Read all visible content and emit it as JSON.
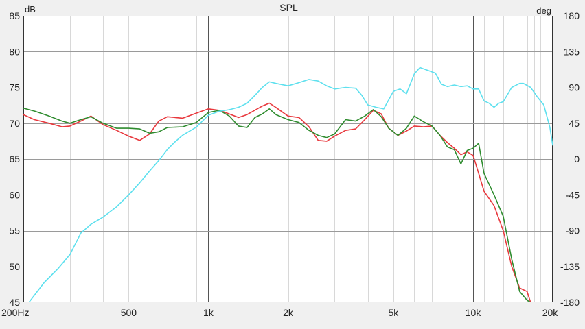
{
  "chart_data": {
    "type": "line",
    "title": "SPL",
    "left_unit": "dB",
    "right_unit": "deg",
    "x_scale": "log",
    "xlim": [
      200,
      20000
    ],
    "ylim_left": [
      45,
      85
    ],
    "ylim_right": [
      -180,
      180
    ],
    "grid": true,
    "x_ticks": [
      {
        "value": 200,
        "label": "200Hz"
      },
      {
        "value": 500,
        "label": "500"
      },
      {
        "value": 1000,
        "label": "1k"
      },
      {
        "value": 2000,
        "label": "2k"
      },
      {
        "value": 5000,
        "label": "5k"
      },
      {
        "value": 10000,
        "label": "10k"
      },
      {
        "value": 20000,
        "label": "20k"
      }
    ],
    "y_left_ticks": [
      45,
      50,
      55,
      60,
      65,
      70,
      75,
      80,
      85
    ],
    "y_right_ticks": [
      {
        "value": -180,
        "label": "-180"
      },
      {
        "value": -135,
        "label": "-135"
      },
      {
        "value": -90,
        "label": "-90"
      },
      {
        "value": -45,
        "label": "-45"
      },
      {
        "value": 0,
        "label": "0"
      },
      {
        "value": 45,
        "label": "45"
      },
      {
        "value": 90,
        "label": "90"
      },
      {
        "value": 135,
        "label": "135"
      },
      {
        "value": 180,
        "label": "180"
      }
    ],
    "series": [
      {
        "color": "#e8383d",
        "axis": "left",
        "points": [
          [
            200,
            71.2
          ],
          [
            220,
            70.5
          ],
          [
            250,
            70
          ],
          [
            280,
            69.5
          ],
          [
            300,
            69.6
          ],
          [
            330,
            70.3
          ],
          [
            360,
            71
          ],
          [
            400,
            69.8
          ],
          [
            450,
            69
          ],
          [
            500,
            68.2
          ],
          [
            550,
            67.6
          ],
          [
            600,
            68.5
          ],
          [
            650,
            70.3
          ],
          [
            700,
            70.9
          ],
          [
            800,
            70.7
          ],
          [
            900,
            71.4
          ],
          [
            1000,
            72
          ],
          [
            1100,
            71.8
          ],
          [
            1200,
            71.3
          ],
          [
            1300,
            70.8
          ],
          [
            1400,
            71.2
          ],
          [
            1600,
            72.4
          ],
          [
            1700,
            72.8
          ],
          [
            1800,
            72.2
          ],
          [
            2000,
            71
          ],
          [
            2200,
            70.8
          ],
          [
            2400,
            69.5
          ],
          [
            2600,
            67.6
          ],
          [
            2800,
            67.5
          ],
          [
            3000,
            68.2
          ],
          [
            3300,
            69
          ],
          [
            3600,
            69.2
          ],
          [
            3900,
            70.5
          ],
          [
            4200,
            71.8
          ],
          [
            4500,
            71.3
          ],
          [
            4800,
            69.3
          ],
          [
            5200,
            68.3
          ],
          [
            5600,
            68.9
          ],
          [
            6000,
            69.6
          ],
          [
            6500,
            69.5
          ],
          [
            7000,
            69.6
          ],
          [
            7500,
            68.3
          ],
          [
            8000,
            67.3
          ],
          [
            8500,
            66.5
          ],
          [
            9000,
            65.6
          ],
          [
            9500,
            66
          ],
          [
            10000,
            65.5
          ],
          [
            10500,
            63
          ],
          [
            11000,
            60.5
          ],
          [
            12000,
            58.5
          ],
          [
            13000,
            55
          ],
          [
            14000,
            50
          ],
          [
            15000,
            47
          ],
          [
            16000,
            46.5
          ],
          [
            16500,
            45
          ]
        ]
      },
      {
        "color": "#2f8c2f",
        "axis": "left",
        "points": [
          [
            200,
            72.1
          ],
          [
            220,
            71.7
          ],
          [
            250,
            71
          ],
          [
            280,
            70.3
          ],
          [
            300,
            70
          ],
          [
            330,
            70.5
          ],
          [
            360,
            70.9
          ],
          [
            400,
            70
          ],
          [
            450,
            69.3
          ],
          [
            500,
            69.3
          ],
          [
            550,
            69.2
          ],
          [
            600,
            68.6
          ],
          [
            650,
            68.8
          ],
          [
            700,
            69.4
          ],
          [
            800,
            69.5
          ],
          [
            900,
            70.1
          ],
          [
            1000,
            71.5
          ],
          [
            1100,
            71.8
          ],
          [
            1200,
            71
          ],
          [
            1300,
            69.6
          ],
          [
            1400,
            69.4
          ],
          [
            1500,
            70.8
          ],
          [
            1600,
            71.3
          ],
          [
            1700,
            72
          ],
          [
            1800,
            71.2
          ],
          [
            2000,
            70.5
          ],
          [
            2200,
            70.1
          ],
          [
            2400,
            69
          ],
          [
            2600,
            68.3
          ],
          [
            2800,
            68
          ],
          [
            3000,
            68.5
          ],
          [
            3300,
            70.5
          ],
          [
            3600,
            70.3
          ],
          [
            3900,
            71
          ],
          [
            4200,
            71.9
          ],
          [
            4500,
            70.9
          ],
          [
            4800,
            69.3
          ],
          [
            5200,
            68.3
          ],
          [
            5600,
            69.3
          ],
          [
            6000,
            71
          ],
          [
            6500,
            70.2
          ],
          [
            7000,
            69.6
          ],
          [
            7500,
            68.3
          ],
          [
            8000,
            66.7
          ],
          [
            8500,
            66.3
          ],
          [
            9000,
            64.3
          ],
          [
            9500,
            66.2
          ],
          [
            10000,
            66.5
          ],
          [
            10500,
            67.2
          ],
          [
            11000,
            63
          ],
          [
            12000,
            60
          ],
          [
            13000,
            57
          ],
          [
            14000,
            51
          ],
          [
            15000,
            46.5
          ],
          [
            16000,
            45.3
          ],
          [
            16500,
            45
          ]
        ]
      },
      {
        "color": "#5ee0ee",
        "axis": "right",
        "points": [
          [
            210,
            -180
          ],
          [
            240,
            -155
          ],
          [
            270,
            -138
          ],
          [
            300,
            -120
          ],
          [
            330,
            -93
          ],
          [
            360,
            -82
          ],
          [
            400,
            -73
          ],
          [
            450,
            -60
          ],
          [
            500,
            -45
          ],
          [
            550,
            -30
          ],
          [
            600,
            -15
          ],
          [
            650,
            -2
          ],
          [
            700,
            12
          ],
          [
            750,
            22
          ],
          [
            800,
            30
          ],
          [
            900,
            40
          ],
          [
            1000,
            55
          ],
          [
            1100,
            60
          ],
          [
            1200,
            62
          ],
          [
            1300,
            65
          ],
          [
            1400,
            70
          ],
          [
            1500,
            80
          ],
          [
            1600,
            90
          ],
          [
            1700,
            97
          ],
          [
            1800,
            95
          ],
          [
            2000,
            92
          ],
          [
            2200,
            96
          ],
          [
            2400,
            100
          ],
          [
            2600,
            98
          ],
          [
            2800,
            92
          ],
          [
            3000,
            88
          ],
          [
            3300,
            90
          ],
          [
            3600,
            89
          ],
          [
            3800,
            80
          ],
          [
            4000,
            68
          ],
          [
            4300,
            65
          ],
          [
            4600,
            63
          ],
          [
            5000,
            85
          ],
          [
            5300,
            88
          ],
          [
            5600,
            82
          ],
          [
            6000,
            107
          ],
          [
            6300,
            115
          ],
          [
            6800,
            111
          ],
          [
            7200,
            108
          ],
          [
            7600,
            94
          ],
          [
            8000,
            91
          ],
          [
            8500,
            93
          ],
          [
            9000,
            91
          ],
          [
            9500,
            92
          ],
          [
            10000,
            88
          ],
          [
            10500,
            88
          ],
          [
            11000,
            73
          ],
          [
            11500,
            70
          ],
          [
            12000,
            65
          ],
          [
            12500,
            70
          ],
          [
            13000,
            72
          ],
          [
            14000,
            90
          ],
          [
            15000,
            95
          ],
          [
            15500,
            95
          ],
          [
            16500,
            90
          ],
          [
            17500,
            78
          ],
          [
            18500,
            68
          ],
          [
            19500,
            40
          ],
          [
            20000,
            17
          ]
        ]
      }
    ]
  }
}
